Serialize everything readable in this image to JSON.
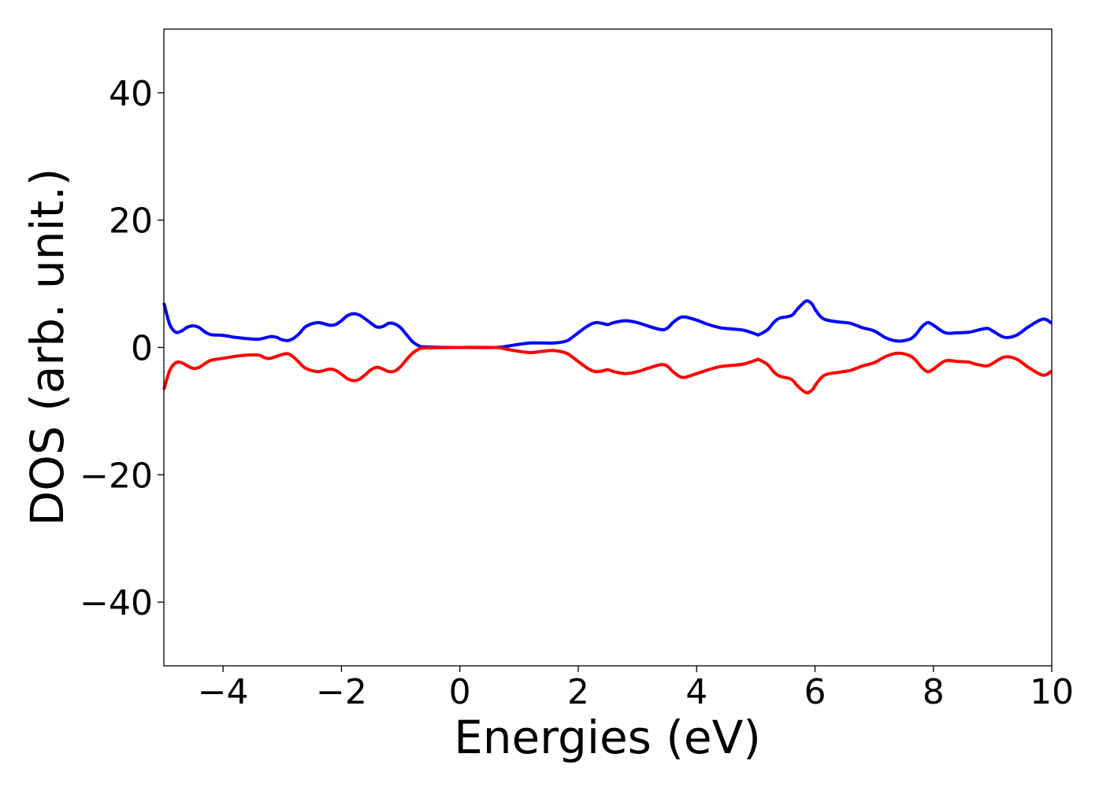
{
  "chart_data": {
    "type": "line",
    "xlabel": "Energies (eV)",
    "ylabel": "DOS (arb. unit.)",
    "xlim": [
      -5,
      10
    ],
    "ylim": [
      -50,
      50
    ],
    "xticks": [
      -4,
      -2,
      0,
      2,
      4,
      6,
      8,
      10
    ],
    "yticks": [
      -40,
      -20,
      0,
      20,
      40
    ],
    "xtick_labels": [
      "−4",
      "−2",
      "0",
      "2",
      "4",
      "6",
      "8",
      "10"
    ],
    "ytick_labels": [
      "−40",
      "−20",
      "0",
      "20",
      "40"
    ],
    "grid": false,
    "legend": "none",
    "series": [
      {
        "color": "#0000ff",
        "points": [
          [
            -5.0,
            7.0
          ],
          [
            -4.9,
            3.6
          ],
          [
            -4.8,
            2.4
          ],
          [
            -4.7,
            2.6
          ],
          [
            -4.6,
            3.2
          ],
          [
            -4.5,
            3.4
          ],
          [
            -4.4,
            3.1
          ],
          [
            -4.3,
            2.4
          ],
          [
            -4.2,
            2.0
          ],
          [
            -4.0,
            1.9
          ],
          [
            -3.8,
            1.6
          ],
          [
            -3.6,
            1.4
          ],
          [
            -3.4,
            1.3
          ],
          [
            -3.2,
            1.7
          ],
          [
            -3.1,
            1.6
          ],
          [
            -3.0,
            1.2
          ],
          [
            -2.9,
            1.1
          ],
          [
            -2.8,
            1.5
          ],
          [
            -2.7,
            2.3
          ],
          [
            -2.6,
            3.3
          ],
          [
            -2.4,
            3.9
          ],
          [
            -2.2,
            3.5
          ],
          [
            -2.1,
            3.6
          ],
          [
            -2.0,
            4.2
          ],
          [
            -1.9,
            5.0
          ],
          [
            -1.8,
            5.3
          ],
          [
            -1.7,
            5.1
          ],
          [
            -1.6,
            4.5
          ],
          [
            -1.5,
            3.8
          ],
          [
            -1.4,
            3.2
          ],
          [
            -1.3,
            3.3
          ],
          [
            -1.2,
            3.8
          ],
          [
            -1.1,
            3.7
          ],
          [
            -1.0,
            3.1
          ],
          [
            -0.9,
            2.0
          ],
          [
            -0.8,
            0.9
          ],
          [
            -0.7,
            0.3
          ],
          [
            -0.6,
            0.1
          ],
          [
            0.0,
            0.0
          ],
          [
            0.6,
            0.0
          ],
          [
            0.8,
            0.2
          ],
          [
            1.0,
            0.5
          ],
          [
            1.2,
            0.7
          ],
          [
            1.4,
            0.7
          ],
          [
            1.6,
            0.7
          ],
          [
            1.8,
            1.0
          ],
          [
            1.9,
            1.6
          ],
          [
            2.0,
            2.3
          ],
          [
            2.1,
            3.0
          ],
          [
            2.2,
            3.6
          ],
          [
            2.3,
            3.9
          ],
          [
            2.4,
            3.8
          ],
          [
            2.5,
            3.6
          ],
          [
            2.6,
            3.9
          ],
          [
            2.8,
            4.2
          ],
          [
            3.0,
            3.9
          ],
          [
            3.2,
            3.3
          ],
          [
            3.4,
            2.8
          ],
          [
            3.5,
            3.0
          ],
          [
            3.6,
            3.9
          ],
          [
            3.7,
            4.6
          ],
          [
            3.8,
            4.8
          ],
          [
            4.0,
            4.3
          ],
          [
            4.2,
            3.6
          ],
          [
            4.4,
            3.1
          ],
          [
            4.6,
            2.9
          ],
          [
            4.8,
            2.7
          ],
          [
            5.0,
            2.1
          ],
          [
            5.05,
            2.0
          ],
          [
            5.2,
            2.8
          ],
          [
            5.3,
            3.9
          ],
          [
            5.4,
            4.6
          ],
          [
            5.6,
            5.0
          ],
          [
            5.7,
            6.0
          ],
          [
            5.85,
            7.3
          ],
          [
            5.95,
            6.8
          ],
          [
            6.0,
            6.0
          ],
          [
            6.1,
            4.8
          ],
          [
            6.2,
            4.3
          ],
          [
            6.4,
            4.0
          ],
          [
            6.6,
            3.8
          ],
          [
            6.8,
            3.1
          ],
          [
            7.0,
            2.6
          ],
          [
            7.2,
            1.5
          ],
          [
            7.4,
            1.0
          ],
          [
            7.6,
            1.3
          ],
          [
            7.7,
            2.0
          ],
          [
            7.8,
            3.2
          ],
          [
            7.9,
            3.9
          ],
          [
            8.0,
            3.5
          ],
          [
            8.2,
            2.3
          ],
          [
            8.4,
            2.3
          ],
          [
            8.6,
            2.4
          ],
          [
            8.7,
            2.6
          ],
          [
            8.9,
            3.0
          ],
          [
            9.0,
            2.6
          ],
          [
            9.2,
            1.6
          ],
          [
            9.4,
            1.9
          ],
          [
            9.6,
            3.2
          ],
          [
            9.8,
            4.3
          ],
          [
            9.9,
            4.4
          ],
          [
            10.0,
            3.8
          ]
        ]
      },
      {
        "color": "#ff0000",
        "points": [
          [
            -5.0,
            -6.6
          ],
          [
            -4.9,
            -3.6
          ],
          [
            -4.8,
            -2.4
          ],
          [
            -4.7,
            -2.4
          ],
          [
            -4.6,
            -2.9
          ],
          [
            -4.5,
            -3.3
          ],
          [
            -4.4,
            -3.1
          ],
          [
            -4.3,
            -2.5
          ],
          [
            -4.2,
            -2.0
          ],
          [
            -4.0,
            -1.7
          ],
          [
            -3.8,
            -1.4
          ],
          [
            -3.6,
            -1.2
          ],
          [
            -3.4,
            -1.2
          ],
          [
            -3.3,
            -1.6
          ],
          [
            -3.2,
            -1.7
          ],
          [
            -3.0,
            -1.1
          ],
          [
            -2.9,
            -1.0
          ],
          [
            -2.8,
            -1.6
          ],
          [
            -2.7,
            -2.5
          ],
          [
            -2.6,
            -3.3
          ],
          [
            -2.4,
            -3.8
          ],
          [
            -2.2,
            -3.4
          ],
          [
            -2.1,
            -3.6
          ],
          [
            -2.0,
            -4.2
          ],
          [
            -1.9,
            -4.9
          ],
          [
            -1.8,
            -5.2
          ],
          [
            -1.7,
            -5.0
          ],
          [
            -1.6,
            -4.3
          ],
          [
            -1.5,
            -3.5
          ],
          [
            -1.4,
            -3.1
          ],
          [
            -1.3,
            -3.4
          ],
          [
            -1.2,
            -3.8
          ],
          [
            -1.1,
            -3.7
          ],
          [
            -1.0,
            -3.0
          ],
          [
            -0.9,
            -1.9
          ],
          [
            -0.8,
            -0.9
          ],
          [
            -0.7,
            -0.3
          ],
          [
            -0.6,
            -0.1
          ],
          [
            0.0,
            0.0
          ],
          [
            0.6,
            0.0
          ],
          [
            0.8,
            -0.3
          ],
          [
            1.0,
            -0.6
          ],
          [
            1.2,
            -0.8
          ],
          [
            1.4,
            -0.6
          ],
          [
            1.6,
            -0.5
          ],
          [
            1.8,
            -0.9
          ],
          [
            1.9,
            -1.5
          ],
          [
            2.0,
            -2.2
          ],
          [
            2.1,
            -2.9
          ],
          [
            2.2,
            -3.5
          ],
          [
            2.3,
            -3.8
          ],
          [
            2.4,
            -3.7
          ],
          [
            2.5,
            -3.5
          ],
          [
            2.6,
            -3.8
          ],
          [
            2.8,
            -4.1
          ],
          [
            3.0,
            -3.8
          ],
          [
            3.2,
            -3.2
          ],
          [
            3.4,
            -2.7
          ],
          [
            3.5,
            -2.9
          ],
          [
            3.6,
            -3.8
          ],
          [
            3.7,
            -4.5
          ],
          [
            3.8,
            -4.7
          ],
          [
            4.0,
            -4.1
          ],
          [
            4.2,
            -3.5
          ],
          [
            4.4,
            -3.0
          ],
          [
            4.6,
            -2.8
          ],
          [
            4.8,
            -2.6
          ],
          [
            5.0,
            -2.0
          ],
          [
            5.05,
            -1.9
          ],
          [
            5.2,
            -2.7
          ],
          [
            5.3,
            -3.8
          ],
          [
            5.4,
            -4.5
          ],
          [
            5.6,
            -5.0
          ],
          [
            5.7,
            -6.0
          ],
          [
            5.85,
            -7.1
          ],
          [
            5.95,
            -6.7
          ],
          [
            6.0,
            -6.0
          ],
          [
            6.1,
            -4.8
          ],
          [
            6.2,
            -4.2
          ],
          [
            6.4,
            -3.9
          ],
          [
            6.6,
            -3.6
          ],
          [
            6.8,
            -2.9
          ],
          [
            7.0,
            -2.4
          ],
          [
            7.2,
            -1.4
          ],
          [
            7.4,
            -0.9
          ],
          [
            7.6,
            -1.3
          ],
          [
            7.7,
            -2.0
          ],
          [
            7.8,
            -3.1
          ],
          [
            7.9,
            -3.8
          ],
          [
            8.0,
            -3.4
          ],
          [
            8.2,
            -2.1
          ],
          [
            8.4,
            -2.2
          ],
          [
            8.6,
            -2.3
          ],
          [
            8.7,
            -2.6
          ],
          [
            8.9,
            -2.9
          ],
          [
            9.0,
            -2.5
          ],
          [
            9.2,
            -1.5
          ],
          [
            9.4,
            -1.8
          ],
          [
            9.6,
            -3.1
          ],
          [
            9.8,
            -4.2
          ],
          [
            9.9,
            -4.3
          ],
          [
            10.0,
            -3.7
          ]
        ]
      }
    ]
  }
}
